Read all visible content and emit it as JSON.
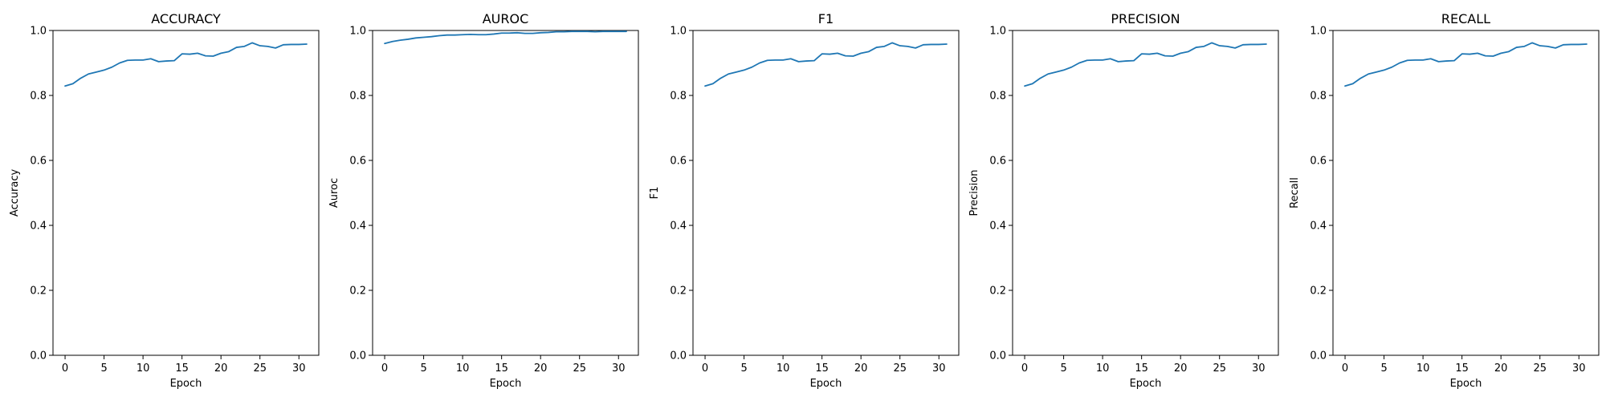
{
  "chart_data": [
    {
      "type": "line",
      "title": "ACCURACY",
      "xlabel": "Epoch",
      "ylabel": "Accuracy",
      "xlim": [
        -1.55,
        32.55
      ],
      "ylim": [
        0.0,
        1.0
      ],
      "xticks": [
        0,
        5,
        10,
        15,
        20,
        25,
        30
      ],
      "yticks": [
        0.0,
        0.2,
        0.4,
        0.6,
        0.8,
        1.0
      ],
      "grid": false,
      "color": "#1f77b4",
      "x": [
        0,
        1,
        2,
        3,
        4,
        5,
        6,
        7,
        8,
        9,
        10,
        11,
        12,
        13,
        14,
        15,
        16,
        17,
        18,
        19,
        20,
        21,
        22,
        23,
        24,
        25,
        26,
        27,
        28,
        29,
        30,
        31
      ],
      "values": [
        0.829,
        0.836,
        0.853,
        0.866,
        0.872,
        0.878,
        0.887,
        0.9,
        0.908,
        0.909,
        0.909,
        0.913,
        0.904,
        0.906,
        0.907,
        0.928,
        0.927,
        0.93,
        0.922,
        0.921,
        0.93,
        0.935,
        0.948,
        0.951,
        0.962,
        0.953,
        0.951,
        0.946,
        0.956,
        0.957,
        0.957,
        0.958
      ]
    },
    {
      "type": "line",
      "title": "AUROC",
      "xlabel": "Epoch",
      "ylabel": "Auroc",
      "xlim": [
        -1.55,
        32.55
      ],
      "ylim": [
        0.0,
        1.0
      ],
      "xticks": [
        0,
        5,
        10,
        15,
        20,
        25,
        30
      ],
      "yticks": [
        0.0,
        0.2,
        0.4,
        0.6,
        0.8,
        1.0
      ],
      "grid": false,
      "color": "#1f77b4",
      "x": [
        0,
        1,
        2,
        3,
        4,
        5,
        6,
        7,
        8,
        9,
        10,
        11,
        12,
        13,
        14,
        15,
        16,
        17,
        18,
        19,
        20,
        21,
        22,
        23,
        24,
        25,
        26,
        27,
        28,
        29,
        30,
        31
      ],
      "values": [
        0.96,
        0.966,
        0.97,
        0.973,
        0.977,
        0.979,
        0.981,
        0.984,
        0.986,
        0.986,
        0.987,
        0.988,
        0.987,
        0.987,
        0.989,
        0.992,
        0.992,
        0.993,
        0.991,
        0.991,
        0.993,
        0.994,
        0.996,
        0.996,
        0.997,
        0.997,
        0.997,
        0.996,
        0.997,
        0.997,
        0.997,
        0.997
      ]
    },
    {
      "type": "line",
      "title": "F1",
      "xlabel": "Epoch",
      "ylabel": "F1",
      "xlim": [
        -1.55,
        32.55
      ],
      "ylim": [
        0.0,
        1.0
      ],
      "xticks": [
        0,
        5,
        10,
        15,
        20,
        25,
        30
      ],
      "yticks": [
        0.0,
        0.2,
        0.4,
        0.6,
        0.8,
        1.0
      ],
      "grid": false,
      "color": "#1f77b4",
      "x": [
        0,
        1,
        2,
        3,
        4,
        5,
        6,
        7,
        8,
        9,
        10,
        11,
        12,
        13,
        14,
        15,
        16,
        17,
        18,
        19,
        20,
        21,
        22,
        23,
        24,
        25,
        26,
        27,
        28,
        29,
        30,
        31
      ],
      "values": [
        0.829,
        0.836,
        0.853,
        0.866,
        0.872,
        0.878,
        0.887,
        0.9,
        0.908,
        0.909,
        0.909,
        0.913,
        0.904,
        0.906,
        0.907,
        0.928,
        0.927,
        0.93,
        0.922,
        0.921,
        0.93,
        0.935,
        0.948,
        0.951,
        0.962,
        0.953,
        0.951,
        0.946,
        0.956,
        0.957,
        0.957,
        0.958
      ]
    },
    {
      "type": "line",
      "title": "PRECISION",
      "xlabel": "Epoch",
      "ylabel": "Precision",
      "xlim": [
        -1.55,
        32.55
      ],
      "ylim": [
        0.0,
        1.0
      ],
      "xticks": [
        0,
        5,
        10,
        15,
        20,
        25,
        30
      ],
      "yticks": [
        0.0,
        0.2,
        0.4,
        0.6,
        0.8,
        1.0
      ],
      "grid": false,
      "color": "#1f77b4",
      "x": [
        0,
        1,
        2,
        3,
        4,
        5,
        6,
        7,
        8,
        9,
        10,
        11,
        12,
        13,
        14,
        15,
        16,
        17,
        18,
        19,
        20,
        21,
        22,
        23,
        24,
        25,
        26,
        27,
        28,
        29,
        30,
        31
      ],
      "values": [
        0.829,
        0.836,
        0.853,
        0.866,
        0.872,
        0.878,
        0.887,
        0.9,
        0.908,
        0.909,
        0.909,
        0.913,
        0.904,
        0.906,
        0.907,
        0.928,
        0.927,
        0.93,
        0.922,
        0.921,
        0.93,
        0.935,
        0.948,
        0.951,
        0.962,
        0.953,
        0.951,
        0.946,
        0.956,
        0.957,
        0.957,
        0.958
      ]
    },
    {
      "type": "line",
      "title": "RECALL",
      "xlabel": "Epoch",
      "ylabel": "Recall",
      "xlim": [
        -1.55,
        32.55
      ],
      "ylim": [
        0.0,
        1.0
      ],
      "xticks": [
        0,
        5,
        10,
        15,
        20,
        25,
        30
      ],
      "yticks": [
        0.0,
        0.2,
        0.4,
        0.6,
        0.8,
        1.0
      ],
      "grid": false,
      "color": "#1f77b4",
      "x": [
        0,
        1,
        2,
        3,
        4,
        5,
        6,
        7,
        8,
        9,
        10,
        11,
        12,
        13,
        14,
        15,
        16,
        17,
        18,
        19,
        20,
        21,
        22,
        23,
        24,
        25,
        26,
        27,
        28,
        29,
        30,
        31
      ],
      "values": [
        0.829,
        0.836,
        0.853,
        0.866,
        0.872,
        0.878,
        0.887,
        0.9,
        0.908,
        0.909,
        0.909,
        0.913,
        0.904,
        0.906,
        0.907,
        0.928,
        0.927,
        0.93,
        0.922,
        0.921,
        0.93,
        0.935,
        0.948,
        0.951,
        0.962,
        0.953,
        0.951,
        0.946,
        0.956,
        0.957,
        0.957,
        0.958
      ]
    }
  ]
}
